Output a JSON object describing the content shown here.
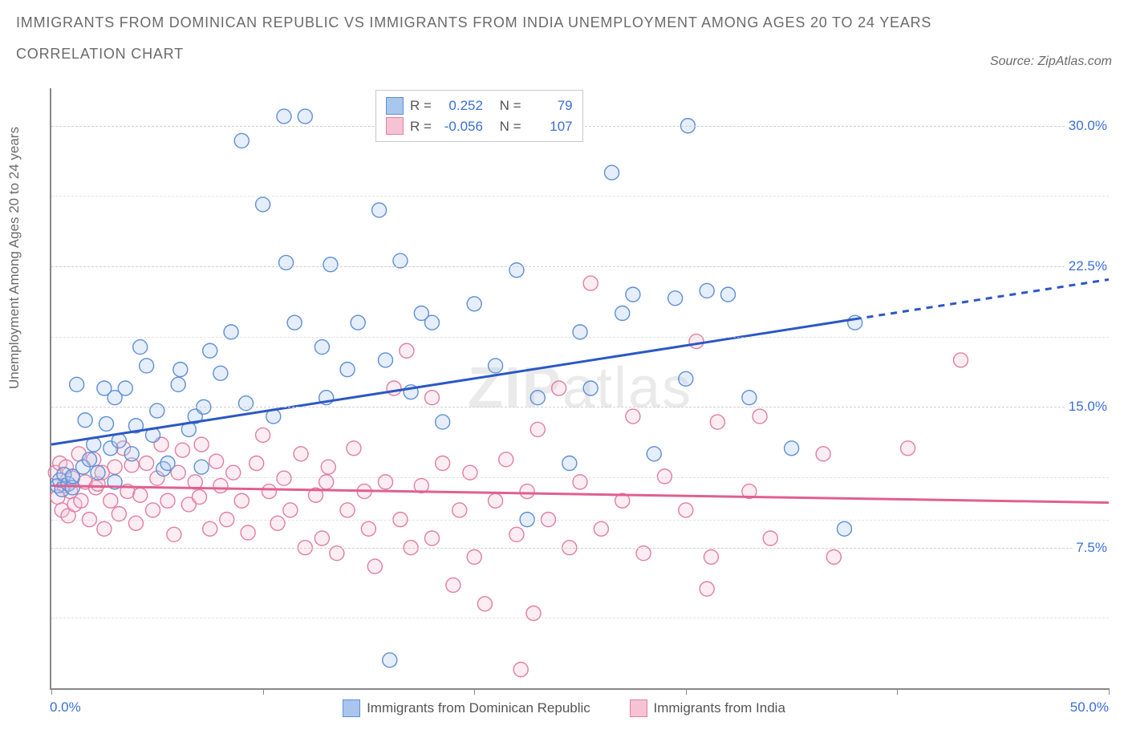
{
  "title_line1": "IMMIGRANTS FROM DOMINICAN REPUBLIC VS IMMIGRANTS FROM INDIA UNEMPLOYMENT AMONG AGES 20 TO 24 YEARS",
  "title_line2": "CORRELATION CHART",
  "source_text": "Source: ZipAtlas.com",
  "yaxis_label": "Unemployment Among Ages 20 to 24 years",
  "xaxis_min_label": "0.0%",
  "xaxis_max_label": "50.0%",
  "watermark": {
    "bold": "ZIP",
    "rest": "atlas"
  },
  "chart": {
    "type": "scatter",
    "xlim": [
      0,
      50
    ],
    "ylim": [
      0,
      32
    ],
    "yticks": [
      {
        "value": 7.5,
        "label": "7.5%"
      },
      {
        "value": 15.0,
        "label": "15.0%"
      },
      {
        "value": 22.5,
        "label": "22.5%"
      },
      {
        "value": 30.0,
        "label": "30.0%"
      }
    ],
    "ygrid_minor": [
      3.75,
      11.25,
      9.0,
      18.75,
      26.25
    ],
    "xticks": [
      0,
      10,
      20,
      30,
      40,
      50
    ],
    "background_color": "#ffffff",
    "grid_color": "#d0d0d0",
    "axis_color": "#888888",
    "marker_radius": 9,
    "marker_stroke_width": 1.4,
    "marker_fill_opacity": 0.3,
    "trend_line_width": 3
  },
  "series_a": {
    "name": "Immigrants from Dominican Republic",
    "color_fill": "#a9c6ef",
    "color_stroke": "#5d8fd6",
    "trend_color": "#2b58c5",
    "R": "0.252",
    "N": "79",
    "trend": {
      "y_at_x0": 13.0,
      "y_at_x50": 21.8,
      "solid_until_x": 38
    },
    "points": [
      [
        0.3,
        10.8
      ],
      [
        0.4,
        11.1
      ],
      [
        0.5,
        10.6
      ],
      [
        0.6,
        11.4
      ],
      [
        0.8,
        10.9
      ],
      [
        1.0,
        10.7
      ],
      [
        1.0,
        11.3
      ],
      [
        1.2,
        16.2
      ],
      [
        1.5,
        11.8
      ],
      [
        1.6,
        14.3
      ],
      [
        1.8,
        12.2
      ],
      [
        2.0,
        13.0
      ],
      [
        2.2,
        11.5
      ],
      [
        2.5,
        16.0
      ],
      [
        2.6,
        14.1
      ],
      [
        2.8,
        12.8
      ],
      [
        3.0,
        15.5
      ],
      [
        3.0,
        11.0
      ],
      [
        3.2,
        13.2
      ],
      [
        3.5,
        16.0
      ],
      [
        3.8,
        12.5
      ],
      [
        4.0,
        14.0
      ],
      [
        4.2,
        18.2
      ],
      [
        4.5,
        17.2
      ],
      [
        4.8,
        13.5
      ],
      [
        5.0,
        14.8
      ],
      [
        5.3,
        11.7
      ],
      [
        5.5,
        12.0
      ],
      [
        6.0,
        16.2
      ],
      [
        6.1,
        17.0
      ],
      [
        6.5,
        13.8
      ],
      [
        6.8,
        14.5
      ],
      [
        7.1,
        11.8
      ],
      [
        7.2,
        15.0
      ],
      [
        7.5,
        18.0
      ],
      [
        8.0,
        16.8
      ],
      [
        8.5,
        19.0
      ],
      [
        9.0,
        29.2
      ],
      [
        9.2,
        15.2
      ],
      [
        10.0,
        25.8
      ],
      [
        10.5,
        14.5
      ],
      [
        11.0,
        30.5
      ],
      [
        11.1,
        22.7
      ],
      [
        11.5,
        19.5
      ],
      [
        12.0,
        30.5
      ],
      [
        12.8,
        18.2
      ],
      [
        13.0,
        15.5
      ],
      [
        13.2,
        22.6
      ],
      [
        14.0,
        17.0
      ],
      [
        14.5,
        19.5
      ],
      [
        15.5,
        25.5
      ],
      [
        15.8,
        17.5
      ],
      [
        16.0,
        1.5
      ],
      [
        16.5,
        22.8
      ],
      [
        17.0,
        15.8
      ],
      [
        17.5,
        20.0
      ],
      [
        18.0,
        19.5
      ],
      [
        18.5,
        14.2
      ],
      [
        20.0,
        20.5
      ],
      [
        21.0,
        17.2
      ],
      [
        22.0,
        22.3
      ],
      [
        22.5,
        9.0
      ],
      [
        23.0,
        15.5
      ],
      [
        24.5,
        12.0
      ],
      [
        25.0,
        19.0
      ],
      [
        25.5,
        16.0
      ],
      [
        26.5,
        27.5
      ],
      [
        27.0,
        20.0
      ],
      [
        27.5,
        21.0
      ],
      [
        28.5,
        12.5
      ],
      [
        29.5,
        20.8
      ],
      [
        30.0,
        16.5
      ],
      [
        30.1,
        30.0
      ],
      [
        31.0,
        21.2
      ],
      [
        32.0,
        21.0
      ],
      [
        33.0,
        15.5
      ],
      [
        35.0,
        12.8
      ],
      [
        37.5,
        8.5
      ],
      [
        38.0,
        19.5
      ]
    ]
  },
  "series_b": {
    "name": "Immigrants from India",
    "color_fill": "#f5c3d3",
    "color_stroke": "#e17da2",
    "trend_color": "#e0608f",
    "R": "-0.056",
    "N": "107",
    "trend": {
      "y_at_x0": 10.8,
      "y_at_x50": 9.9,
      "solid_until_x": 50
    },
    "points": [
      [
        0.2,
        11.5
      ],
      [
        0.3,
        10.2
      ],
      [
        0.4,
        12.0
      ],
      [
        0.5,
        9.5
      ],
      [
        0.6,
        10.8
      ],
      [
        0.7,
        11.8
      ],
      [
        0.8,
        9.2
      ],
      [
        0.9,
        10.5
      ],
      [
        1.0,
        11.2
      ],
      [
        1.1,
        9.8
      ],
      [
        1.3,
        12.5
      ],
      [
        1.4,
        10.0
      ],
      [
        1.6,
        11.0
      ],
      [
        1.8,
        9.0
      ],
      [
        2.0,
        12.2
      ],
      [
        2.1,
        10.7
      ],
      [
        2.2,
        10.9
      ],
      [
        2.4,
        11.5
      ],
      [
        2.5,
        8.5
      ],
      [
        2.8,
        10.0
      ],
      [
        3.0,
        11.8
      ],
      [
        3.2,
        9.3
      ],
      [
        3.4,
        12.8
      ],
      [
        3.6,
        10.5
      ],
      [
        3.8,
        11.9
      ],
      [
        4.0,
        8.8
      ],
      [
        4.2,
        10.3
      ],
      [
        4.5,
        12.0
      ],
      [
        4.8,
        9.5
      ],
      [
        5.0,
        11.2
      ],
      [
        5.2,
        13.0
      ],
      [
        5.5,
        10.0
      ],
      [
        5.8,
        8.2
      ],
      [
        6.0,
        11.5
      ],
      [
        6.2,
        12.7
      ],
      [
        6.5,
        9.8
      ],
      [
        6.8,
        11.0
      ],
      [
        7.0,
        10.2
      ],
      [
        7.1,
        13.0
      ],
      [
        7.5,
        8.5
      ],
      [
        7.8,
        12.1
      ],
      [
        8.0,
        10.8
      ],
      [
        8.3,
        9.0
      ],
      [
        8.6,
        11.5
      ],
      [
        9.0,
        10.0
      ],
      [
        9.3,
        8.3
      ],
      [
        9.7,
        12.0
      ],
      [
        10.0,
        13.5
      ],
      [
        10.3,
        10.5
      ],
      [
        10.7,
        8.8
      ],
      [
        11.0,
        11.2
      ],
      [
        11.3,
        9.5
      ],
      [
        11.8,
        12.5
      ],
      [
        12.0,
        7.5
      ],
      [
        12.5,
        10.3
      ],
      [
        12.8,
        8.0
      ],
      [
        13.0,
        11.0
      ],
      [
        13.1,
        11.8
      ],
      [
        13.5,
        7.2
      ],
      [
        14.0,
        9.5
      ],
      [
        14.3,
        12.8
      ],
      [
        14.8,
        10.5
      ],
      [
        15.0,
        8.5
      ],
      [
        15.3,
        6.5
      ],
      [
        15.8,
        11.0
      ],
      [
        16.2,
        16.0
      ],
      [
        16.5,
        9.0
      ],
      [
        16.8,
        18.0
      ],
      [
        17.0,
        7.5
      ],
      [
        17.5,
        10.8
      ],
      [
        18.0,
        8.0
      ],
      [
        18.5,
        12.0
      ],
      [
        19.0,
        5.5
      ],
      [
        19.3,
        9.5
      ],
      [
        19.8,
        11.5
      ],
      [
        20.0,
        7.0
      ],
      [
        20.5,
        4.5
      ],
      [
        21.0,
        10.0
      ],
      [
        21.5,
        12.2
      ],
      [
        22.0,
        8.2
      ],
      [
        22.2,
        1.0
      ],
      [
        22.5,
        10.5
      ],
      [
        22.8,
        4.0
      ],
      [
        23.0,
        13.8
      ],
      [
        23.5,
        9.0
      ],
      [
        24.0,
        16.0
      ],
      [
        24.5,
        7.5
      ],
      [
        25.0,
        11.0
      ],
      [
        25.5,
        21.6
      ],
      [
        26.0,
        8.5
      ],
      [
        27.0,
        10.0
      ],
      [
        27.5,
        14.5
      ],
      [
        28.0,
        7.2
      ],
      [
        29.0,
        11.3
      ],
      [
        30.0,
        9.5
      ],
      [
        30.5,
        18.5
      ],
      [
        31.0,
        5.3
      ],
      [
        31.2,
        7.0
      ],
      [
        31.5,
        14.2
      ],
      [
        33.0,
        10.5
      ],
      [
        33.5,
        14.5
      ],
      [
        34.0,
        8.0
      ],
      [
        36.5,
        12.5
      ],
      [
        37.0,
        7.0
      ],
      [
        40.5,
        12.8
      ],
      [
        43.0,
        17.5
      ],
      [
        18.0,
        15.5
      ]
    ]
  },
  "legend_stats": {
    "label_R": "R =",
    "label_N": "N ="
  }
}
